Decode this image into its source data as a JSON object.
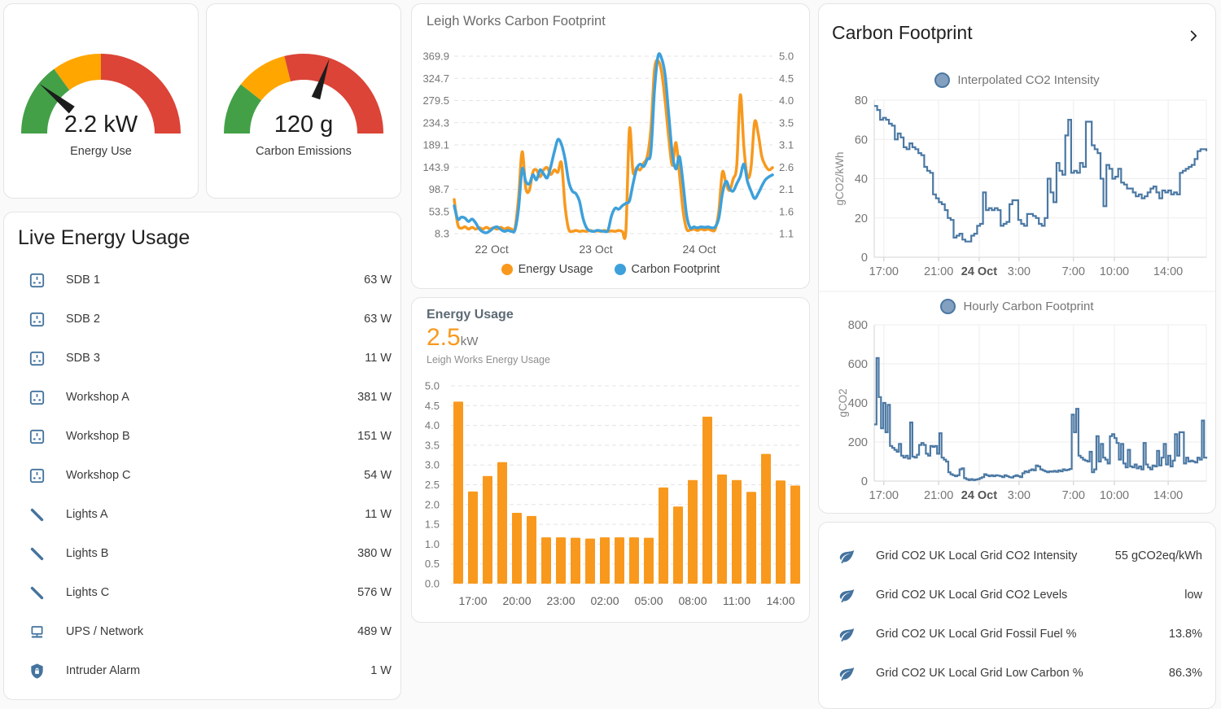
{
  "gauges": [
    {
      "label": "Energy Use",
      "value": "2.2 kW",
      "needle_deg": 141,
      "segments": [
        {
          "color": "#43a047",
          "from": 180,
          "to": 126
        },
        {
          "color": "#ffa600",
          "from": 126,
          "to": 90
        },
        {
          "color": "#db4437",
          "from": 90,
          "to": 0
        }
      ]
    },
    {
      "label": "Carbon Emissions",
      "value": "120 g",
      "needle_deg": 71,
      "segments": [
        {
          "color": "#43a047",
          "from": 180,
          "to": 142
        },
        {
          "color": "#ffa600",
          "from": 142,
          "to": 104
        },
        {
          "color": "#db4437",
          "from": 104,
          "to": 0
        }
      ]
    }
  ],
  "live_energy": {
    "title": "Live Energy Usage",
    "items": [
      {
        "icon": "power-socket-uk",
        "label": "SDB 1",
        "value": "63 W"
      },
      {
        "icon": "power-socket-uk",
        "label": "SDB 2",
        "value": "63 W"
      },
      {
        "icon": "power-socket-uk",
        "label": "SDB 3",
        "value": "11 W"
      },
      {
        "icon": "power-socket-uk",
        "label": "Workshop A",
        "value": "381 W"
      },
      {
        "icon": "power-socket-uk",
        "label": "Workshop B",
        "value": "151 W"
      },
      {
        "icon": "power-socket-uk",
        "label": "Workshop C",
        "value": "54 W"
      },
      {
        "icon": "led-strip",
        "label": "Lights A",
        "value": "11 W"
      },
      {
        "icon": "led-strip",
        "label": "Lights B",
        "value": "380 W"
      },
      {
        "icon": "led-strip",
        "label": "Lights C",
        "value": "576 W"
      },
      {
        "icon": "network",
        "label": "UPS / Network",
        "value": "489 W"
      },
      {
        "icon": "shield-lock",
        "label": "Intruder Alarm",
        "value": "1 W"
      }
    ]
  },
  "carbon_panel": {
    "title": "Carbon Footprint"
  },
  "grid_info": {
    "items": [
      {
        "icon": "leaf",
        "label": "Grid CO2 UK Local Grid CO2 Intensity",
        "value": "55 gCO2eq/kWh"
      },
      {
        "icon": "leaf",
        "label": "Grid CO2 UK Local Grid CO2 Levels",
        "value": "low"
      },
      {
        "icon": "leaf",
        "label": "Grid CO2 UK Local Grid Fossil Fuel %",
        "value": "13.8%"
      },
      {
        "icon": "leaf",
        "label": "Grid CO2 UK Local Grid Low Carbon %",
        "value": "86.3%"
      }
    ]
  },
  "chart_data": [
    {
      "type": "line",
      "title": "Leigh Works Carbon Footprint",
      "x_ticks": [
        {
          "label": "22 Oct",
          "f": 0.118
        },
        {
          "label": "23 Oct",
          "f": 0.445
        },
        {
          "label": "24 Oct",
          "f": 0.77
        }
      ],
      "left_axis": {
        "min": 8.3,
        "max": 369.9,
        "ticks": [
          "369.9",
          "324.7",
          "279.5",
          "234.3",
          "189.1",
          "143.9",
          "98.7",
          "53.5",
          "8.3"
        ]
      },
      "right_axis": {
        "min": 1.1,
        "max": 5.0,
        "ticks": [
          "5.0",
          "4.5",
          "4.0",
          "3.5",
          "3.1",
          "2.6",
          "2.1",
          "1.6",
          "1.1"
        ]
      },
      "series": [
        {
          "name": "Energy Usage",
          "color": "#f8991d",
          "axis": "right",
          "values": [
            1.85,
            1.3,
            1.22,
            1.25,
            1.2,
            1.24,
            1.2,
            1.23,
            1.2,
            1.24,
            1.2,
            1.23,
            1.2,
            1.24,
            1.2,
            1.23,
            1.2,
            1.22,
            1.9,
            2.9,
            2.1,
            2.05,
            2.45,
            2.5,
            2.35,
            2.5,
            2.55,
            2.4,
            2.5,
            2.45,
            2.65,
            1.7,
            1.2,
            1.15,
            1.17,
            1.15,
            1.16,
            1.15,
            1.17,
            1.15,
            1.16,
            1.15,
            1.17,
            1.15,
            1.16,
            1.15,
            1.17,
            1.15,
            1.16,
            3.4,
            2.45,
            2.55,
            2.5,
            2.65,
            2.8,
            3.4,
            4.7,
            4.9,
            4.65,
            4.0,
            3.2,
            2.6,
            3.1,
            2.4,
            1.6,
            1.2,
            1.18,
            1.2,
            1.17,
            1.2,
            1.18,
            1.2,
            1.17,
            1.2,
            1.6,
            2.45,
            2.2,
            2.05,
            2.3,
            2.6,
            4.15,
            3.0,
            2.35,
            2.55,
            3.55,
            3.3,
            2.8,
            2.6,
            2.5,
            2.55
          ]
        },
        {
          "name": "Carbon Footprint",
          "color": "#3da0db",
          "axis": "left",
          "values": [
            65,
            38,
            42,
            40,
            33,
            38,
            30,
            18,
            12,
            10,
            14,
            20,
            22,
            17,
            13,
            15,
            13,
            16,
            60,
            140,
            115,
            110,
            128,
            118,
            138,
            130,
            122,
            145,
            175,
            200,
            190,
            160,
            115,
            95,
            90,
            75,
            40,
            20,
            14,
            13,
            15,
            14,
            13,
            15,
            45,
            60,
            58,
            65,
            70,
            75,
            110,
            140,
            150,
            145,
            160,
            175,
            300,
            370,
            365,
            330,
            250,
            170,
            140,
            165,
            110,
            45,
            20,
            22,
            20,
            22,
            21,
            22,
            20,
            22,
            40,
            90,
            115,
            100,
            95,
            110,
            125,
            150,
            115,
            95,
            80,
            90,
            105,
            118,
            124,
            128
          ]
        }
      ]
    },
    {
      "type": "bar",
      "title": "Energy Usage",
      "value": "2.5",
      "unit": "kW",
      "subtitle": "Leigh Works Energy Usage",
      "color": "#f8991d",
      "ylim": [
        0,
        5
      ],
      "x_tick_labels": [
        "17:00",
        "20:00",
        "23:00",
        "02:00",
        "05:00",
        "08:00",
        "11:00",
        "14:00"
      ],
      "x_tick_indices": [
        1,
        4,
        7,
        10,
        13,
        16,
        19,
        22
      ],
      "values": [
        4.6,
        2.33,
        2.72,
        3.07,
        1.79,
        1.71,
        1.17,
        1.17,
        1.16,
        1.14,
        1.17,
        1.17,
        1.17,
        1.16,
        2.43,
        1.95,
        2.62,
        4.22,
        2.76,
        2.62,
        2.32,
        3.28,
        2.61,
        2.48
      ]
    },
    {
      "type": "line",
      "stepped": true,
      "name": "Interpolated CO2 Intensity",
      "ylabel": "gCO2/kWh",
      "color": "#4b78a3",
      "ylim": [
        0,
        80
      ],
      "yticks": [
        0,
        20,
        40,
        60,
        80
      ],
      "x_ticks": [
        {
          "label": "17:00",
          "f": 0.029
        },
        {
          "label": "21:00",
          "f": 0.194
        },
        {
          "label": "24 Oct",
          "f": 0.316,
          "bold": true
        },
        {
          "label": "3:00",
          "f": 0.436
        },
        {
          "label": "7:00",
          "f": 0.6
        },
        {
          "label": "10:00",
          "f": 0.723
        },
        {
          "label": "14:00",
          "f": 0.885
        }
      ],
      "values": [
        77,
        75,
        70,
        71,
        70,
        68,
        67,
        60,
        63,
        61,
        56,
        55,
        58,
        56,
        55,
        53,
        52,
        46,
        44,
        43,
        32,
        30,
        28,
        27,
        24,
        20,
        19,
        10,
        11,
        12,
        9,
        8,
        8,
        11,
        12,
        16,
        17,
        33,
        24,
        25,
        24,
        25,
        24,
        16,
        17,
        18,
        27,
        29,
        29,
        19,
        17,
        16,
        22,
        22,
        21,
        20,
        17,
        16,
        20,
        40,
        33,
        28,
        48,
        44,
        42,
        62,
        70,
        43,
        44,
        43,
        48,
        46,
        69,
        69,
        57,
        55,
        53,
        40,
        26,
        47,
        45,
        40,
        41,
        45,
        38,
        37,
        35,
        35,
        33,
        31,
        32,
        30,
        31,
        33,
        35,
        36,
        33,
        30,
        34,
        33,
        34,
        32,
        33,
        32,
        43,
        44,
        45,
        46,
        47,
        50,
        54,
        55,
        55,
        54
      ]
    },
    {
      "type": "line",
      "stepped": true,
      "name": "Hourly Carbon Footprint",
      "ylabel": "gCO2",
      "color": "#4b78a3",
      "ylim": [
        0,
        800
      ],
      "yticks": [
        0,
        200,
        400,
        600,
        800
      ],
      "x_ticks": [
        {
          "label": "17:00",
          "f": 0.029
        },
        {
          "label": "21:00",
          "f": 0.194
        },
        {
          "label": "24 Oct",
          "f": 0.316,
          "bold": true
        },
        {
          "label": "3:00",
          "f": 0.436
        },
        {
          "label": "7:00",
          "f": 0.6
        },
        {
          "label": "10:00",
          "f": 0.723
        },
        {
          "label": "14:00",
          "f": 0.885
        }
      ],
      "values": [
        290,
        630,
        430,
        270,
        400,
        250,
        390,
        180,
        170,
        160,
        150,
        190,
        130,
        120,
        130,
        115,
        300,
        125,
        120,
        135,
        185,
        195,
        185,
        140,
        130,
        180,
        175,
        180,
        140,
        245,
        120,
        110,
        100,
        45,
        35,
        30,
        25,
        30,
        60,
        65,
        15,
        10,
        5,
        10,
        5,
        8,
        10,
        15,
        20,
        35,
        30,
        25,
        30,
        25,
        30,
        28,
        25,
        20,
        30,
        25,
        20,
        18,
        25,
        30,
        25,
        20,
        40,
        50,
        45,
        55,
        60,
        55,
        80,
        75,
        60,
        55,
        50,
        45,
        50,
        48,
        52,
        47,
        55,
        50,
        60,
        55,
        58,
        62,
        340,
        250,
        370,
        130,
        120,
        110,
        105,
        100,
        150,
        45,
        60,
        230,
        100,
        190,
        120,
        110,
        90,
        230,
        240,
        220,
        195,
        110,
        190,
        90,
        70,
        160,
        75,
        70,
        85,
        65,
        75,
        60,
        195,
        85,
        70,
        60,
        80,
        75,
        155,
        80,
        120,
        190,
        85,
        130,
        75,
        105,
        240,
        130,
        250,
        250,
        90,
        120,
        100,
        105,
        100,
        95,
        120,
        110,
        310,
        120,
        115
      ]
    }
  ]
}
